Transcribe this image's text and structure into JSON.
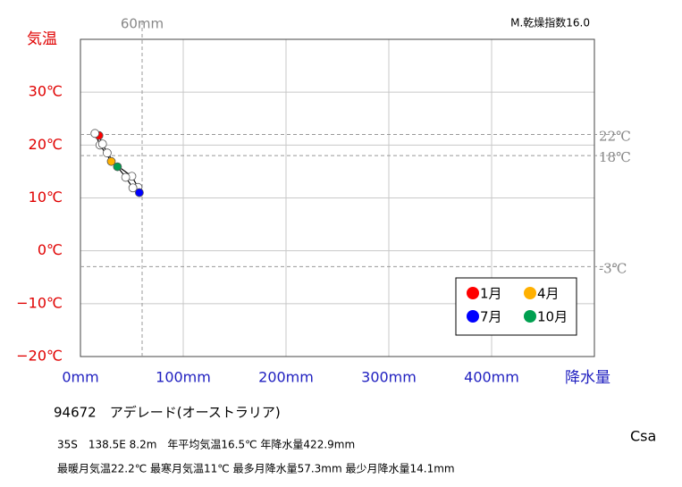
{
  "chart_data": {
    "type": "line",
    "title": "94672　アデレード(オーストラリア)",
    "y_label": "気温",
    "x_label": "降水量",
    "dryness_index": "M.乾燥指数16.0",
    "climate_class": "Csa",
    "notes": [
      "35S　138.5E  8.2m　年平均気温16.5℃ 年降水量422.9mm",
      "最暖月気温22.2℃ 最寒月気温11℃ 最多月降水量57.3mm 最少月降水量14.1mm"
    ],
    "x": [
      18,
      14.1,
      19,
      30,
      50,
      56,
      57.3,
      51,
      44,
      36,
      26,
      21.5
    ],
    "values": [
      21.8,
      22.2,
      20.0,
      16.9,
      14.1,
      12.0,
      11.0,
      11.9,
      13.9,
      15.9,
      18.5,
      20.2
    ],
    "point_colors": [
      "#ff0000",
      "#ffffff",
      "#ffffff",
      "#ffb000",
      "#ffffff",
      "#ffffff",
      "#0000ff",
      "#ffffff",
      "#ffffff",
      "#00a050",
      "#ffffff",
      "#ffffff"
    ],
    "legend": [
      {
        "label": "1月",
        "color": "#ff0000"
      },
      {
        "label": "4月",
        "color": "#ffb000"
      },
      {
        "label": "7月",
        "color": "#0000ff"
      },
      {
        "label": "10月",
        "color": "#00a050"
      }
    ],
    "xlim": [
      0,
      500
    ],
    "ylim": [
      -20,
      40
    ],
    "xticks": [
      {
        "value": 0,
        "label": "0mm"
      },
      {
        "value": 100,
        "label": "100mm"
      },
      {
        "value": 200,
        "label": "200mm"
      },
      {
        "value": 300,
        "label": "300mm"
      },
      {
        "value": 400,
        "label": "400mm"
      }
    ],
    "yticks": [
      {
        "value": -20,
        "label": "−20℃"
      },
      {
        "value": -10,
        "label": "−10℃"
      },
      {
        "value": 0,
        "label": "0℃"
      },
      {
        "value": 10,
        "label": "10℃"
      },
      {
        "value": 20,
        "label": "20℃"
      },
      {
        "value": 30,
        "label": "30℃"
      }
    ],
    "y_reference_lines": [
      {
        "value": 22,
        "label": "22℃"
      },
      {
        "value": 18,
        "label": "18℃"
      },
      {
        "value": -3,
        "label": "-3℃"
      }
    ],
    "x_reference_line": {
      "value": 60,
      "label": "60mm"
    },
    "grid": true
  }
}
